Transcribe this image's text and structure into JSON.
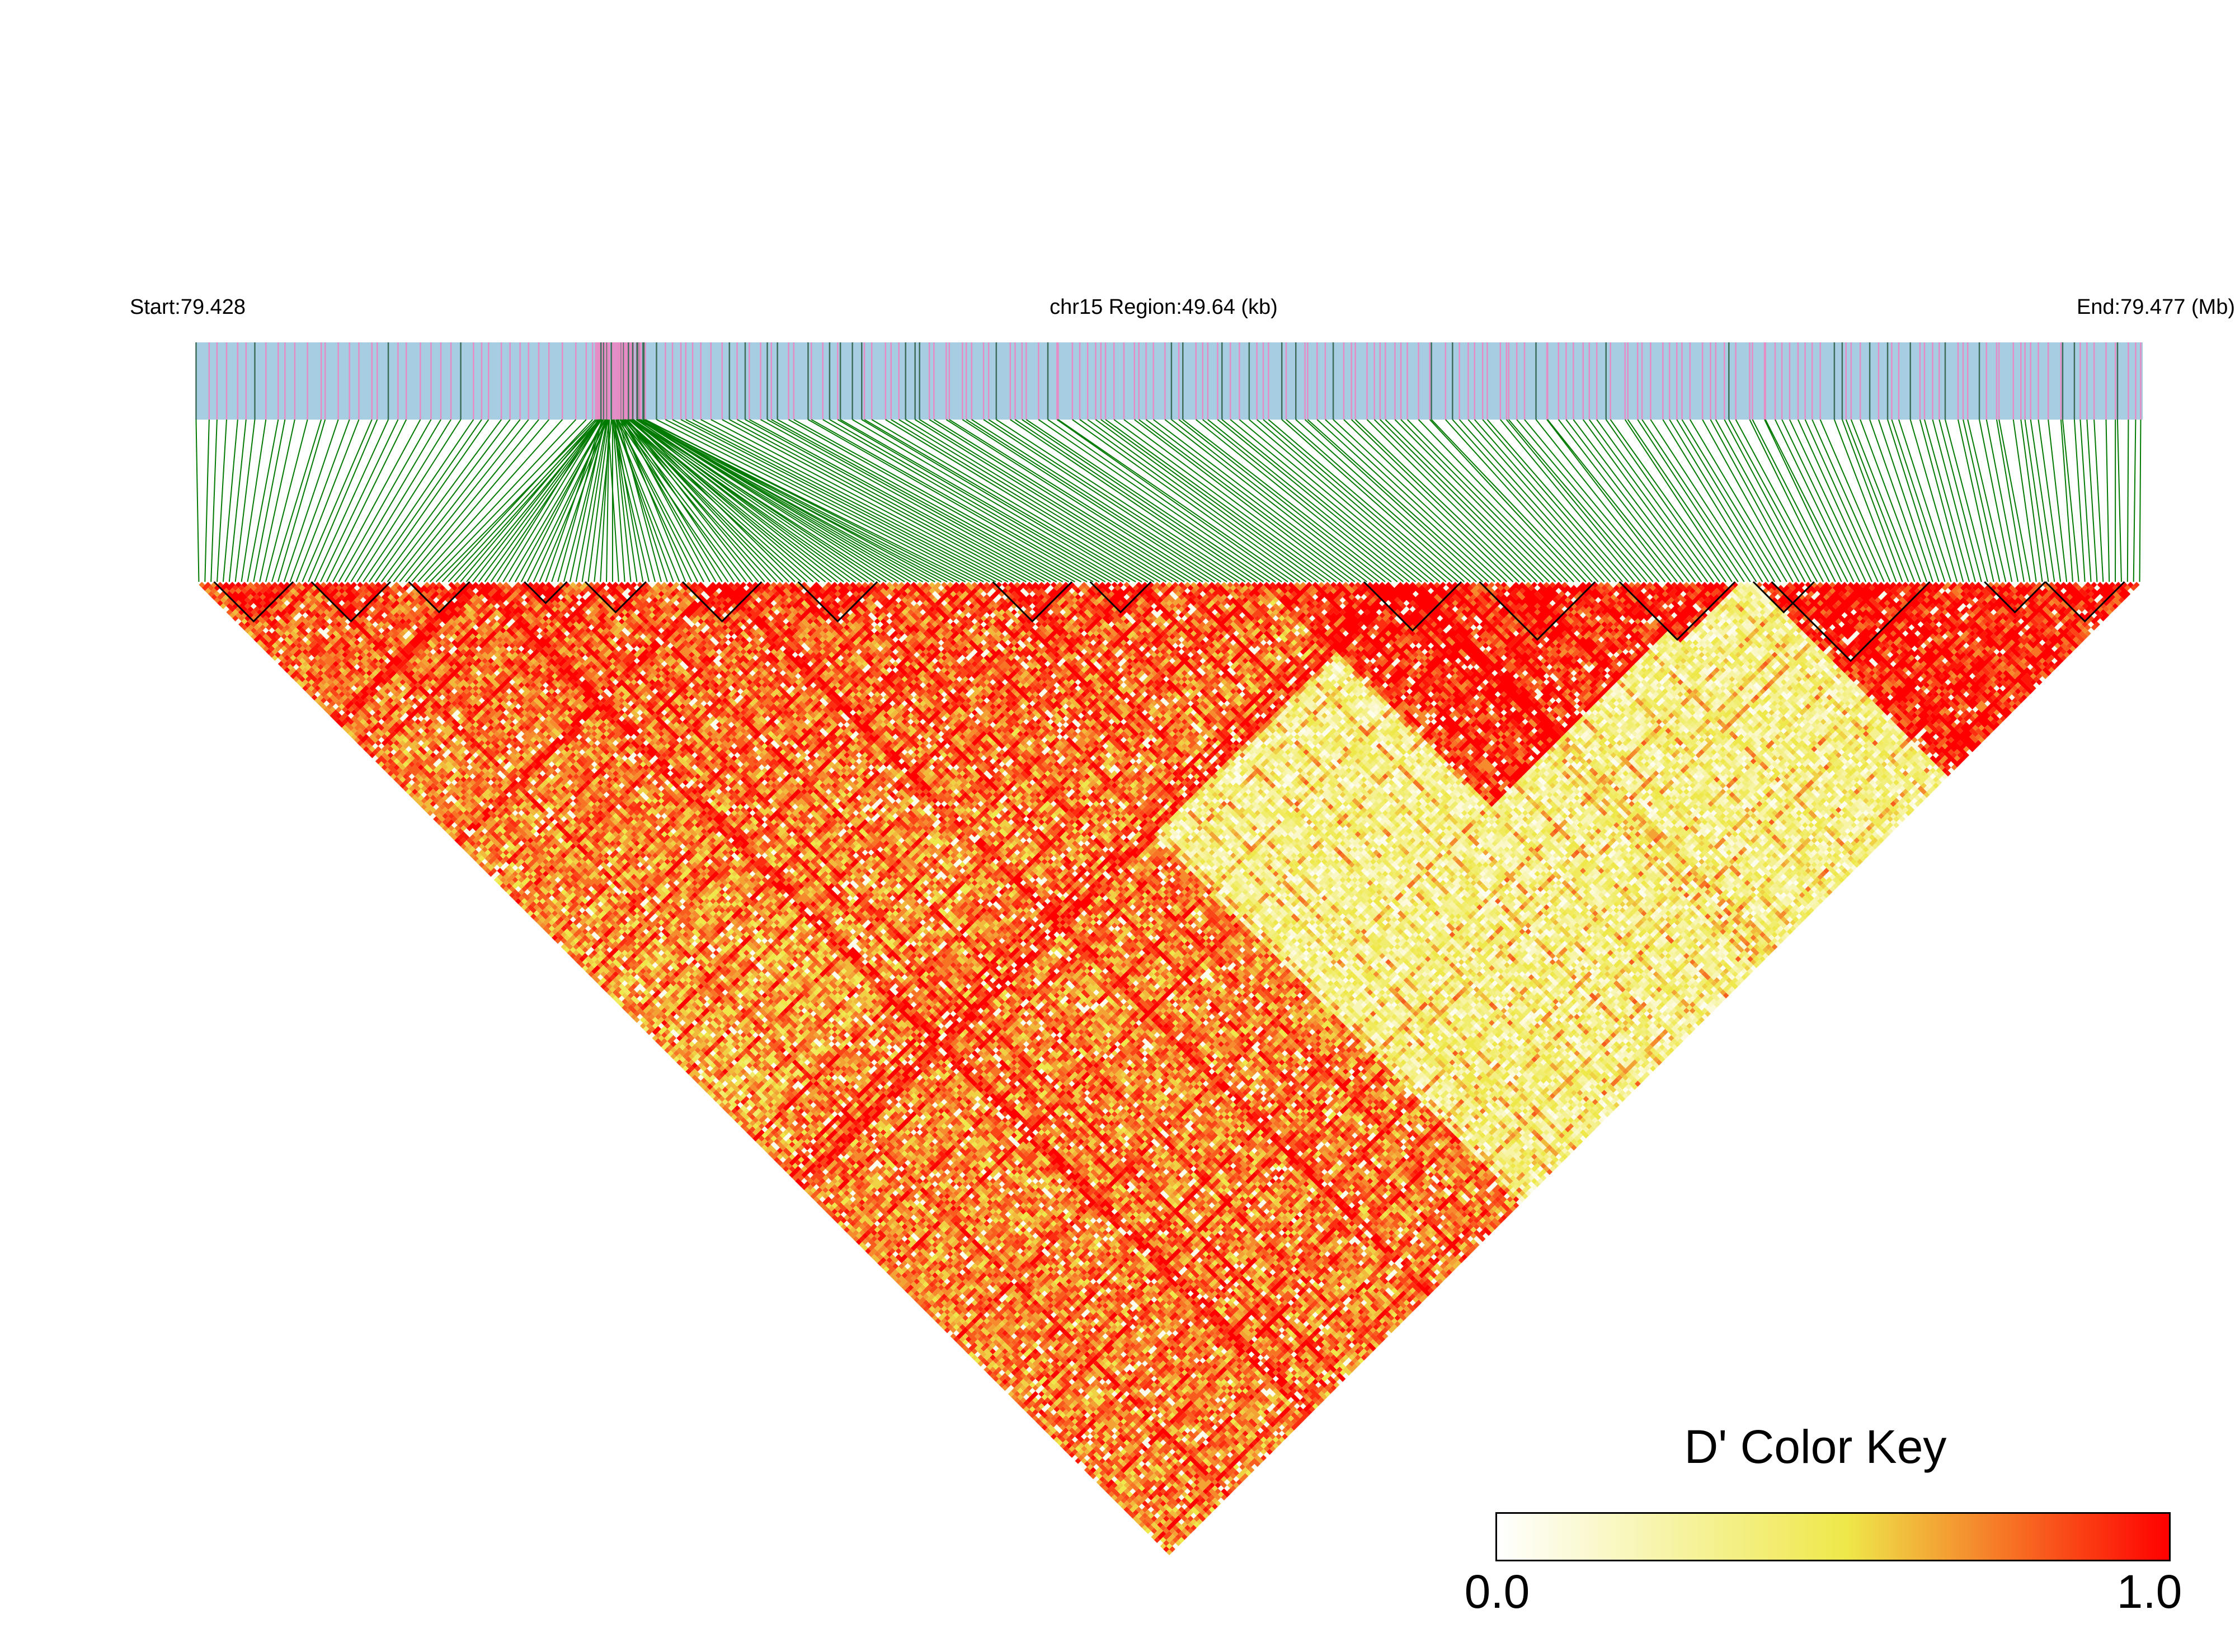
{
  "chart_data": {
    "type": "heatmap",
    "subtype": "linkage-disequilibrium-triangle",
    "header": {
      "start_label": "Start:79.428",
      "region_label": "chr15 Region:49.64 (kb)",
      "end_label": "End:79.477 (Mb)"
    },
    "region": {
      "chromosome": "chr15",
      "start_mb": 79.428,
      "end_mb": 79.477,
      "length_kb": 49.64
    },
    "snp_count": 320,
    "measure": "D'",
    "value_range": [
      0.0,
      1.0
    ],
    "structure": {
      "dense_cluster_fraction": [
        0.205,
        0.23
      ],
      "high_ld_bands": [
        {
          "from_snp_fraction": 0.0,
          "to_snp_fraction": 0.55,
          "level": "high"
        },
        {
          "from_snp_fraction": 0.55,
          "to_snp_fraction": 0.75,
          "level": "high"
        },
        {
          "from_snp_fraction": 0.8,
          "to_snp_fraction": 1.0,
          "level": "high"
        }
      ],
      "low_ld_region": "between SNP fractions 0.36-0.95 and 0.62-1.0",
      "haplotype_blocks_snp_fraction": [
        [
          0.01,
          0.05
        ],
        [
          0.06,
          0.1
        ],
        [
          0.11,
          0.14
        ],
        [
          0.17,
          0.19
        ],
        [
          0.2,
          0.23
        ],
        [
          0.25,
          0.29
        ],
        [
          0.31,
          0.35
        ],
        [
          0.41,
          0.45
        ],
        [
          0.46,
          0.49
        ],
        [
          0.6,
          0.65
        ],
        [
          0.66,
          0.72
        ],
        [
          0.73,
          0.79
        ],
        [
          0.8,
          0.83
        ],
        [
          0.81,
          0.89
        ],
        [
          0.92,
          0.95
        ],
        [
          0.95,
          0.99
        ]
      ]
    },
    "colors": {
      "track_background": "#a6cde2",
      "snp_marker": "#e68cc4",
      "snp_marker_dark": "#3c6e5a",
      "connector_lines": "#007a00",
      "ld_high": "#ff0000",
      "ld_mid": "#eee84a",
      "ld_low": "#ffffff",
      "block_outline": "#000000"
    },
    "legend": {
      "title": "D' Color Key",
      "min_label": "0.0",
      "max_label": "1.0",
      "placement": "bottom-right",
      "stops": [
        "#ffffff",
        "#eee84a",
        "#ff0000"
      ]
    }
  }
}
